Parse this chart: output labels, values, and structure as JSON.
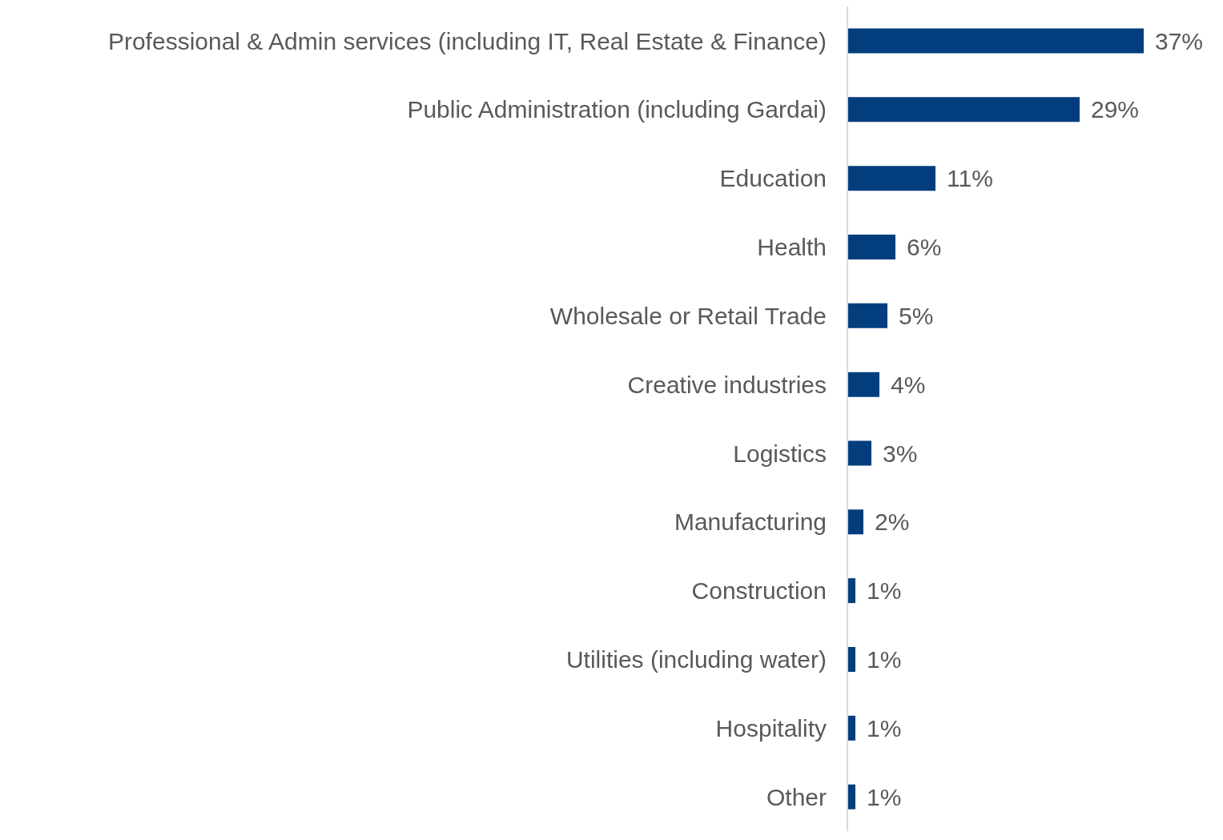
{
  "chart_data": {
    "type": "bar",
    "orientation": "horizontal",
    "categories": [
      "Professional & Admin services (including IT, Real Estate & Finance)",
      "Public Administration (including Gardai)",
      "Education",
      "Health",
      "Wholesale or Retail Trade",
      "Creative industries",
      "Logistics",
      "Manufacturing",
      "Construction",
      "Utilities (including water)",
      "Hospitality",
      "Other"
    ],
    "values": [
      37,
      29,
      11,
      6,
      5,
      4,
      3,
      2,
      1,
      1,
      1,
      1
    ],
    "value_labels": [
      "37%",
      "29%",
      "11%",
      "6%",
      "5%",
      "4%",
      "3%",
      "2%",
      "1%",
      "1%",
      "1%",
      "1%"
    ],
    "color": "#023e7d",
    "grid": false
  }
}
